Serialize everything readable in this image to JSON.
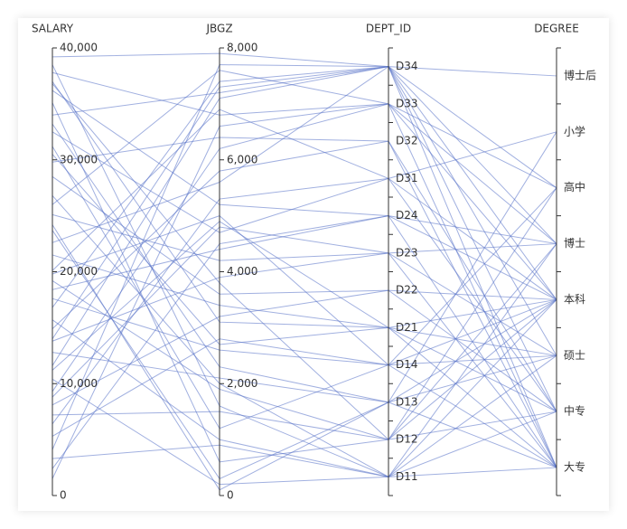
{
  "chart_data": {
    "type": "parallel",
    "color": "#5470c6",
    "dimensions": [
      {
        "name": "SALARY",
        "ylim": [
          0,
          40000
        ],
        "yticks": [
          0,
          {
            "value": 10000,
            "label": "10,000"
          },
          {
            "value": 20000,
            "label": "20,000"
          },
          {
            "value": 30000,
            "label": "30,000"
          },
          {
            "value": 40000,
            "label": "40,000"
          }
        ]
      },
      {
        "name": "JBGZ",
        "ylim": [
          0,
          8000
        ],
        "yticks": [
          0,
          {
            "value": 2000,
            "label": "2,000"
          },
          {
            "value": 4000,
            "label": "4,000"
          },
          {
            "value": 6000,
            "label": "6,000"
          },
          {
            "value": 8000,
            "label": "8,000"
          }
        ]
      },
      {
        "name": "DEPT_ID",
        "categories": [
          "D11",
          "D12",
          "D13",
          "D14",
          "D21",
          "D22",
          "D23",
          "D24",
          "D31",
          "D32",
          "D33",
          "D34"
        ]
      },
      {
        "name": "DEGREE",
        "categories": [
          "大专",
          "中专",
          "硕士",
          "本科",
          "博士",
          "高中",
          "小学",
          "博士后"
        ]
      }
    ],
    "rows": [
      [
        39200,
        7900,
        "D34",
        "博士后"
      ],
      [
        38500,
        1600,
        "D11",
        "大专"
      ],
      [
        37800,
        6800,
        "D33",
        "高中"
      ],
      [
        37000,
        3100,
        "D21",
        "本科"
      ],
      [
        36200,
        5200,
        "D24",
        "博士"
      ],
      [
        35100,
        600,
        "D12",
        "中专"
      ],
      [
        34000,
        7200,
        "D34",
        "硕士"
      ],
      [
        33200,
        2300,
        "D13",
        "大专"
      ],
      [
        32500,
        4700,
        "D31",
        "本科"
      ],
      [
        31200,
        1200,
        "D14",
        "高中"
      ],
      [
        29800,
        6400,
        "D32",
        "中专"
      ],
      [
        28500,
        3600,
        "D22",
        "本科"
      ],
      [
        26800,
        2000,
        "D11",
        "博士"
      ],
      [
        26000,
        7600,
        "D33",
        "大专"
      ],
      [
        25100,
        4200,
        "D23",
        "硕士"
      ],
      [
        23700,
        300,
        "D13",
        "本科"
      ],
      [
        22600,
        5600,
        "D34",
        "高中"
      ],
      [
        21500,
        3400,
        "D21",
        "大专"
      ],
      [
        20100,
        6900,
        "D31",
        "中专"
      ],
      [
        19200,
        1900,
        "D12",
        "博士"
      ],
      [
        18400,
        4400,
        "D24",
        "本科"
      ],
      [
        17600,
        2600,
        "D14",
        "硕士"
      ],
      [
        16800,
        7400,
        "D34",
        "本科"
      ],
      [
        15700,
        1000,
        "D11",
        "中专"
      ],
      [
        14900,
        5800,
        "D32",
        "大专"
      ],
      [
        13800,
        3900,
        "D23",
        "博士"
      ],
      [
        12800,
        2100,
        "D13",
        "硕士"
      ],
      [
        11600,
        7100,
        "D34",
        "大专"
      ],
      [
        11200,
        4900,
        "D21",
        "硕士"
      ],
      [
        10400,
        200,
        "D11",
        "本科"
      ],
      [
        9300,
        6200,
        "D33",
        "博士"
      ],
      [
        8100,
        3200,
        "D22",
        "中专"
      ],
      [
        7200,
        1500,
        "D12",
        "本科"
      ],
      [
        6400,
        5300,
        "D31",
        "小学"
      ],
      [
        5300,
        2800,
        "D14",
        "大专"
      ],
      [
        4100,
        7700,
        "D34",
        "中专"
      ],
      [
        3300,
        900,
        "D11",
        "硕士"
      ],
      [
        2400,
        4500,
        "D24",
        "大专"
      ],
      [
        1500,
        6600,
        "D33",
        "本科"
      ],
      [
        30500,
        2700,
        "D21",
        "中专"
      ],
      [
        24200,
        100,
        "D13",
        "小学"
      ],
      [
        14000,
        7300,
        "D34",
        "博士"
      ],
      [
        8800,
        4800,
        "D23",
        "大专"
      ],
      [
        36800,
        3800,
        "D12",
        "高中"
      ],
      [
        19800,
        5000,
        "D14",
        "本科"
      ]
    ]
  }
}
